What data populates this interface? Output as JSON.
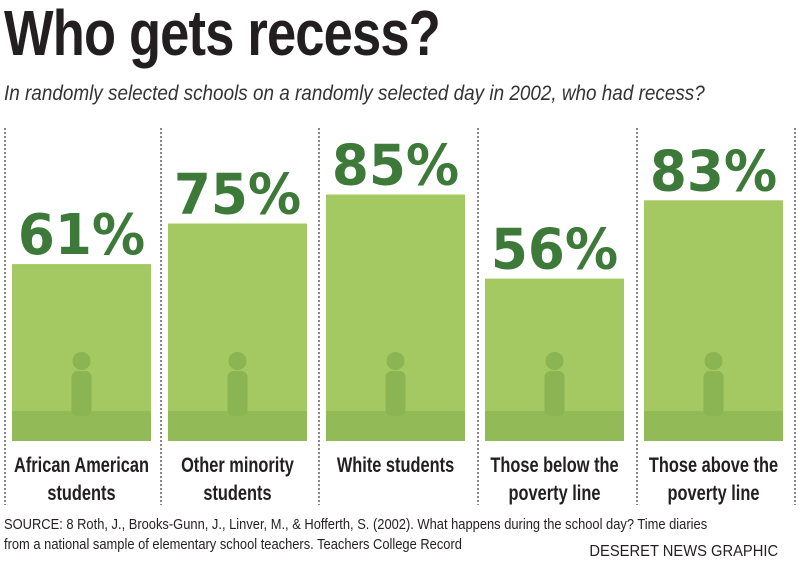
{
  "chart_data": {
    "type": "bar",
    "title": "Who gets recess?",
    "subtitle": "In randomly selected schools on a randomly selected day in 2002, who had recess?",
    "categories": [
      [
        "African American",
        "students"
      ],
      [
        "Other minority",
        "students"
      ],
      [
        "White students"
      ],
      [
        "Those below the",
        "poverty line"
      ],
      [
        "Those above the",
        "poverty line"
      ]
    ],
    "values": [
      61,
      75,
      85,
      56,
      83
    ],
    "data_labels": [
      "61%",
      "75%",
      "85%",
      "56%",
      "83%"
    ],
    "unit": "%",
    "ylim": [
      0,
      100
    ],
    "grid": false,
    "colors": {
      "bar": "#a4c862",
      "label": "#3d7a3a",
      "silhouette": "#8ab552",
      "divider": "#888888",
      "text": "#231f20"
    }
  },
  "source": {
    "line1": "SOURCE:  8 Roth, J., Brooks-Gunn, J., Linver, M., & Hofferth, S. (2002). What happens during the school day? Time diaries",
    "line2": "from a national sample of elementary school teachers. Teachers College Record"
  },
  "credit": "DESERET NEWS GRAPHIC"
}
